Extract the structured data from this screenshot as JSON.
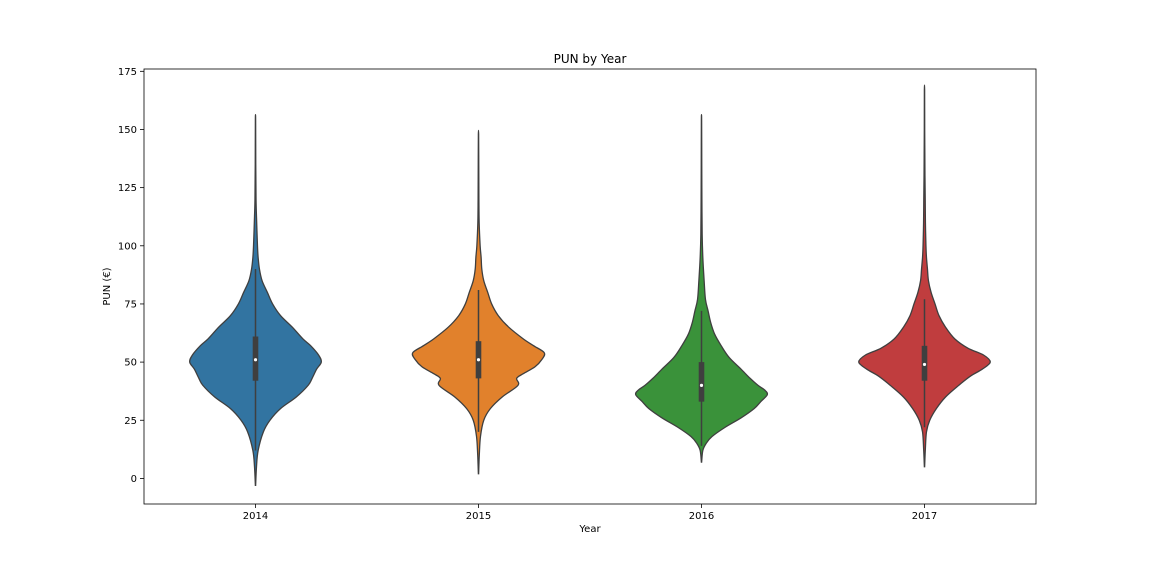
{
  "chart_data": {
    "type": "violin",
    "title": "PUN by Year",
    "xlabel": "Year",
    "ylabel": "PUN (€)",
    "ylim": [
      -11,
      176
    ],
    "yticks": [
      0,
      25,
      50,
      75,
      100,
      125,
      150,
      175
    ],
    "grid": false,
    "categories": [
      "2014",
      "2015",
      "2016",
      "2017"
    ],
    "series": [
      {
        "category": "2014",
        "color": "#3274a1",
        "min": -3,
        "max": 154,
        "q1": 42,
        "median": 51,
        "q3": 61,
        "whisker_low": 12,
        "whisker_high": 90,
        "density": [
          [
            -3,
            0.2
          ],
          [
            5,
            1.5
          ],
          [
            12,
            4
          ],
          [
            20,
            12
          ],
          [
            25,
            22
          ],
          [
            30,
            38
          ],
          [
            35,
            62
          ],
          [
            40,
            80
          ],
          [
            43,
            86
          ],
          [
            47,
            93
          ],
          [
            50,
            100
          ],
          [
            53,
            96
          ],
          [
            57,
            84
          ],
          [
            60,
            72
          ],
          [
            65,
            56
          ],
          [
            70,
            38
          ],
          [
            75,
            26
          ],
          [
            80,
            18
          ],
          [
            85,
            10
          ],
          [
            90,
            6
          ],
          [
            95,
            4
          ],
          [
            100,
            3
          ],
          [
            110,
            1.8
          ],
          [
            120,
            0.8
          ],
          [
            135,
            0.4
          ],
          [
            154,
            0.2
          ]
        ]
      },
      {
        "category": "2015",
        "color": "#e1812c",
        "min": 2,
        "max": 148,
        "q1": 43,
        "median": 51,
        "q3": 59,
        "whisker_low": 20,
        "whisker_high": 81,
        "density": [
          [
            2,
            0.2
          ],
          [
            10,
            1.2
          ],
          [
            18,
            3
          ],
          [
            25,
            8
          ],
          [
            30,
            18
          ],
          [
            35,
            36
          ],
          [
            40,
            60
          ],
          [
            43,
            58
          ],
          [
            45,
            68
          ],
          [
            48,
            86
          ],
          [
            51,
            96
          ],
          [
            54,
            100
          ],
          [
            57,
            84
          ],
          [
            60,
            68
          ],
          [
            65,
            46
          ],
          [
            70,
            30
          ],
          [
            75,
            20
          ],
          [
            80,
            14
          ],
          [
            85,
            8
          ],
          [
            90,
            5
          ],
          [
            95,
            4
          ],
          [
            100,
            2.5
          ],
          [
            110,
            1
          ],
          [
            120,
            0.6
          ],
          [
            135,
            0.4
          ],
          [
            148,
            0.2
          ]
        ]
      },
      {
        "category": "2016",
        "color": "#3a923a",
        "min": 7,
        "max": 154,
        "q1": 33,
        "median": 40,
        "q3": 50,
        "whisker_low": 14,
        "whisker_high": 72,
        "density": [
          [
            7,
            0.2
          ],
          [
            12,
            2
          ],
          [
            15,
            7
          ],
          [
            18,
            16
          ],
          [
            22,
            36
          ],
          [
            26,
            60
          ],
          [
            30,
            80
          ],
          [
            33,
            90
          ],
          [
            36,
            100
          ],
          [
            38,
            96
          ],
          [
            40,
            86
          ],
          [
            43,
            74
          ],
          [
            47,
            60
          ],
          [
            52,
            42
          ],
          [
            57,
            30
          ],
          [
            62,
            20
          ],
          [
            67,
            14
          ],
          [
            72,
            10
          ],
          [
            77,
            6
          ],
          [
            85,
            4
          ],
          [
            95,
            2
          ],
          [
            105,
            1
          ],
          [
            120,
            0.6
          ],
          [
            135,
            0.4
          ],
          [
            154,
            0.2
          ]
        ]
      },
      {
        "category": "2017",
        "color": "#c03d3e",
        "min": 5,
        "max": 167,
        "q1": 42,
        "median": 49,
        "q3": 57,
        "whisker_low": 22,
        "whisker_high": 77,
        "density": [
          [
            5,
            0.2
          ],
          [
            12,
            1.2
          ],
          [
            20,
            3
          ],
          [
            25,
            8
          ],
          [
            30,
            18
          ],
          [
            35,
            32
          ],
          [
            40,
            52
          ],
          [
            44,
            70
          ],
          [
            47,
            88
          ],
          [
            50,
            100
          ],
          [
            53,
            90
          ],
          [
            56,
            66
          ],
          [
            60,
            46
          ],
          [
            65,
            32
          ],
          [
            70,
            22
          ],
          [
            75,
            16
          ],
          [
            80,
            10
          ],
          [
            85,
            6
          ],
          [
            90,
            4.5
          ],
          [
            95,
            3
          ],
          [
            100,
            2.2
          ],
          [
            110,
            1.4
          ],
          [
            120,
            1.1
          ],
          [
            130,
            0.7
          ],
          [
            140,
            0.5
          ],
          [
            150,
            0.3
          ],
          [
            167,
            0.2
          ]
        ]
      }
    ]
  }
}
